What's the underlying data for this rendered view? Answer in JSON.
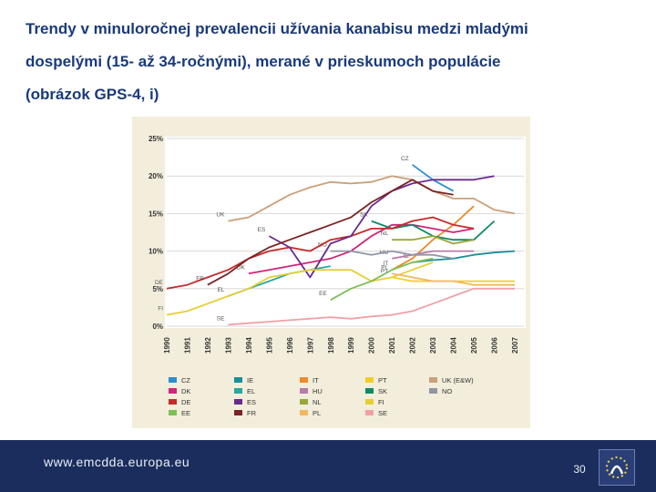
{
  "slide": {
    "title_lines": [
      "Trendy v minuloročnej prevalencii užívania kanabisu medzi mladými",
      "dospelými (15- až 34-ročnými), merané v prieskumoch populácie",
      "(obrázok GPS-4, i)"
    ],
    "footer_url": "www.emcdda.europa.eu",
    "page_number": "30"
  },
  "chart_data": {
    "type": "line",
    "title": "",
    "xlabel": "",
    "ylabel": "",
    "ylim": [
      0,
      25
    ],
    "yticks": [
      "0%",
      "5%",
      "10%",
      "15%",
      "20%",
      "25%"
    ],
    "categories": [
      "1990",
      "1991",
      "1992",
      "1993",
      "1994",
      "1995",
      "1996",
      "1997",
      "1998",
      "1999",
      "2000",
      "2001",
      "2002",
      "2003",
      "2004",
      "2005",
      "2006",
      "2007"
    ],
    "series": [
      {
        "name": "CZ",
        "label": "CZ",
        "color": "#2b8fd0",
        "points": [
          [
            2002,
            21.5
          ],
          [
            2003,
            19.5
          ],
          [
            2004,
            18.0
          ]
        ]
      },
      {
        "name": "IE",
        "label": "IE",
        "color": "#1a8f9b",
        "points": [
          [
            2002,
            8.5
          ],
          [
            2003,
            8.8
          ],
          [
            2004,
            9.0
          ],
          [
            2005,
            9.5
          ],
          [
            2006,
            9.8
          ],
          [
            2007,
            10.0
          ]
        ]
      },
      {
        "name": "IT",
        "label": "IT",
        "color": "#ee8a2a",
        "points": [
          [
            2001,
            7.5
          ],
          [
            2002,
            9.0
          ],
          [
            2003,
            11.5
          ],
          [
            2004,
            13.5
          ],
          [
            2005,
            16.0
          ]
        ]
      },
      {
        "name": "PT",
        "label": "PT",
        "color": "#f2cd2a",
        "points": [
          [
            2001,
            6.5
          ],
          [
            2002,
            6.0
          ],
          [
            2003,
            6.0
          ],
          [
            2004,
            6.0
          ],
          [
            2005,
            6.0
          ],
          [
            2006,
            6.0
          ],
          [
            2007,
            6.0
          ]
        ]
      },
      {
        "name": "UK (E&W)",
        "label": "UK",
        "color": "#c9a07a",
        "points": [
          [
            1993,
            14.0
          ],
          [
            1994,
            14.5
          ],
          [
            1995,
            16.0
          ],
          [
            1996,
            17.5
          ],
          [
            1997,
            18.5
          ],
          [
            1998,
            19.2
          ],
          [
            1999,
            19.0
          ],
          [
            2000,
            19.2
          ],
          [
            2001,
            20.0
          ],
          [
            2002,
            19.5
          ],
          [
            2003,
            18.0
          ],
          [
            2004,
            17.0
          ],
          [
            2005,
            17.0
          ],
          [
            2006,
            15.5
          ],
          [
            2007,
            15.0
          ]
        ]
      },
      {
        "name": "DK",
        "label": "DK",
        "color": "#d4237a",
        "points": [
          [
            1994,
            7.0
          ],
          [
            1995,
            7.5
          ],
          [
            1996,
            8.0
          ],
          [
            1997,
            8.5
          ],
          [
            1998,
            9.0
          ],
          [
            1999,
            10.0
          ],
          [
            2000,
            12.0
          ],
          [
            2001,
            13.5
          ],
          [
            2002,
            13.5
          ],
          [
            2003,
            13.0
          ],
          [
            2004,
            12.5
          ],
          [
            2005,
            13.0
          ]
        ]
      },
      {
        "name": "EL",
        "label": "EL",
        "color": "#2aa7a0",
        "points": [
          [
            1993,
            4.0
          ],
          [
            1994,
            5.0
          ],
          [
            1995,
            6.0
          ],
          [
            1996,
            7.0
          ],
          [
            1997,
            7.5
          ],
          [
            1998,
            8.0
          ]
        ]
      },
      {
        "name": "HU",
        "label": "HU",
        "color": "#b87aa8",
        "points": [
          [
            2001,
            9.0
          ],
          [
            2002,
            9.5
          ],
          [
            2003,
            10.0
          ],
          [
            2004,
            10.0
          ],
          [
            2005,
            10.0
          ]
        ]
      },
      {
        "name": "SK",
        "label": "SK",
        "color": "#0f8a66",
        "points": [
          [
            2000,
            14.0
          ],
          [
            2001,
            13.0
          ],
          [
            2002,
            13.5
          ],
          [
            2003,
            12.0
          ],
          [
            2004,
            11.5
          ],
          [
            2005,
            11.5
          ],
          [
            2006,
            14.0
          ]
        ]
      },
      {
        "name": "NO",
        "label": "NO",
        "color": "#8e96a6",
        "points": [
          [
            1998,
            10.0
          ],
          [
            1999,
            10.0
          ],
          [
            2000,
            9.5
          ],
          [
            2001,
            10.0
          ],
          [
            2002,
            9.5
          ],
          [
            2003,
            9.5
          ],
          [
            2004,
            9.0
          ]
        ]
      },
      {
        "name": "DE",
        "label": "DE",
        "color": "#c52a2a",
        "points": [
          [
            1990,
            5.0
          ],
          [
            1991,
            5.5
          ],
          [
            1992,
            6.5
          ],
          [
            1993,
            7.5
          ],
          [
            1994,
            9.0
          ],
          [
            1995,
            10.0
          ],
          [
            1996,
            10.5
          ],
          [
            1997,
            10.0
          ],
          [
            1998,
            11.5
          ],
          [
            1999,
            12.0
          ],
          [
            2000,
            13.0
          ],
          [
            2001,
            13.0
          ],
          [
            2002,
            14.0
          ],
          [
            2003,
            14.5
          ],
          [
            2004,
            13.5
          ],
          [
            2005,
            13.0
          ]
        ]
      },
      {
        "name": "ES",
        "label": "ES",
        "color": "#6a2b8c",
        "points": [
          [
            1995,
            12.0
          ],
          [
            1996,
            10.5
          ],
          [
            1997,
            6.5
          ],
          [
            1998,
            11.0
          ],
          [
            1999,
            12.0
          ],
          [
            2000,
            16.0
          ],
          [
            2001,
            18.0
          ],
          [
            2002,
            19.0
          ],
          [
            2003,
            19.5
          ],
          [
            2004,
            19.5
          ],
          [
            2005,
            19.5
          ],
          [
            2006,
            20.0
          ]
        ]
      },
      {
        "name": "NL",
        "label": "NL",
        "color": "#9aa63a",
        "points": [
          [
            2001,
            11.5
          ],
          [
            2002,
            11.5
          ],
          [
            2003,
            12.0
          ],
          [
            2004,
            11.0
          ],
          [
            2005,
            11.5
          ]
        ]
      },
      {
        "name": "FI",
        "label": "FI",
        "color": "#e6cf33",
        "points": [
          [
            1990,
            1.5
          ],
          [
            1991,
            2.0
          ],
          [
            1992,
            3.0
          ],
          [
            1993,
            4.0
          ],
          [
            1994,
            5.0
          ],
          [
            1995,
            6.5
          ],
          [
            1996,
            7.0
          ],
          [
            1997,
            7.5
          ],
          [
            1998,
            7.5
          ],
          [
            1999,
            7.5
          ],
          [
            2000,
            6.0
          ],
          [
            2001,
            6.5
          ],
          [
            2002,
            7.5
          ],
          [
            2003,
            8.5
          ]
        ]
      },
      {
        "name": "EE",
        "label": "EE",
        "color": "#7dbf56",
        "points": [
          [
            1998,
            3.5
          ],
          [
            1999,
            5.0
          ],
          [
            2000,
            6.0
          ],
          [
            2001,
            7.5
          ],
          [
            2002,
            8.5
          ],
          [
            2003,
            9.0
          ]
        ]
      },
      {
        "name": "FR",
        "label": "FR",
        "color": "#7a2424",
        "points": [
          [
            1992,
            5.5
          ],
          [
            1993,
            7.0
          ],
          [
            1994,
            9.0
          ],
          [
            1995,
            10.5
          ],
          [
            1996,
            11.5
          ],
          [
            1997,
            12.5
          ],
          [
            1998,
            13.5
          ],
          [
            1999,
            14.5
          ],
          [
            2000,
            16.5
          ],
          [
            2001,
            18.0
          ],
          [
            2002,
            19.5
          ],
          [
            2003,
            18.0
          ],
          [
            2004,
            17.5
          ]
        ]
      },
      {
        "name": "PL",
        "label": "PL",
        "color": "#f0b860",
        "points": [
          [
            2001,
            7.0
          ],
          [
            2002,
            6.5
          ],
          [
            2003,
            6.0
          ],
          [
            2004,
            6.0
          ],
          [
            2005,
            5.5
          ],
          [
            2006,
            5.5
          ],
          [
            2007,
            5.5
          ]
        ]
      },
      {
        "name": "SE",
        "label": "SE",
        "color": "#f0a0a8",
        "points": [
          [
            1993,
            0.2
          ],
          [
            1994,
            0.4
          ],
          [
            1995,
            0.6
          ],
          [
            1996,
            0.8
          ],
          [
            1997,
            1.0
          ],
          [
            1998,
            1.2
          ],
          [
            1999,
            1.0
          ],
          [
            2000,
            1.3
          ],
          [
            2001,
            1.5
          ],
          [
            2002,
            2.0
          ],
          [
            2003,
            3.0
          ],
          [
            2004,
            4.0
          ],
          [
            2005,
            5.0
          ],
          [
            2006,
            5.0
          ],
          [
            2007,
            5.0
          ]
        ]
      }
    ],
    "legend": [
      [
        "CZ",
        "IE",
        "IT",
        "PT",
        "UK (E&W)"
      ],
      [
        "DK",
        "EL",
        "HU",
        "SK",
        "NO"
      ],
      [
        "DE",
        "ES",
        "NL",
        "FI"
      ],
      [
        "EE",
        "FR",
        "PL",
        "SE"
      ]
    ],
    "legend_colors": {
      "CZ": "#2b8fd0",
      "IE": "#1a8f9b",
      "IT": "#ee8a2a",
      "PT": "#f2cd2a",
      "UK (E&W)": "#c9a07a",
      "DK": "#d4237a",
      "EL": "#2aa7a0",
      "HU": "#b87aa8",
      "SK": "#0f8a66",
      "NO": "#8e96a6",
      "DE": "#c52a2a",
      "ES": "#6a2b8c",
      "NL": "#9aa63a",
      "FI": "#e6cf33",
      "EE": "#7dbf56",
      "FR": "#7a2424",
      "PL": "#f0b860",
      "SE": "#f0a0a8"
    }
  }
}
